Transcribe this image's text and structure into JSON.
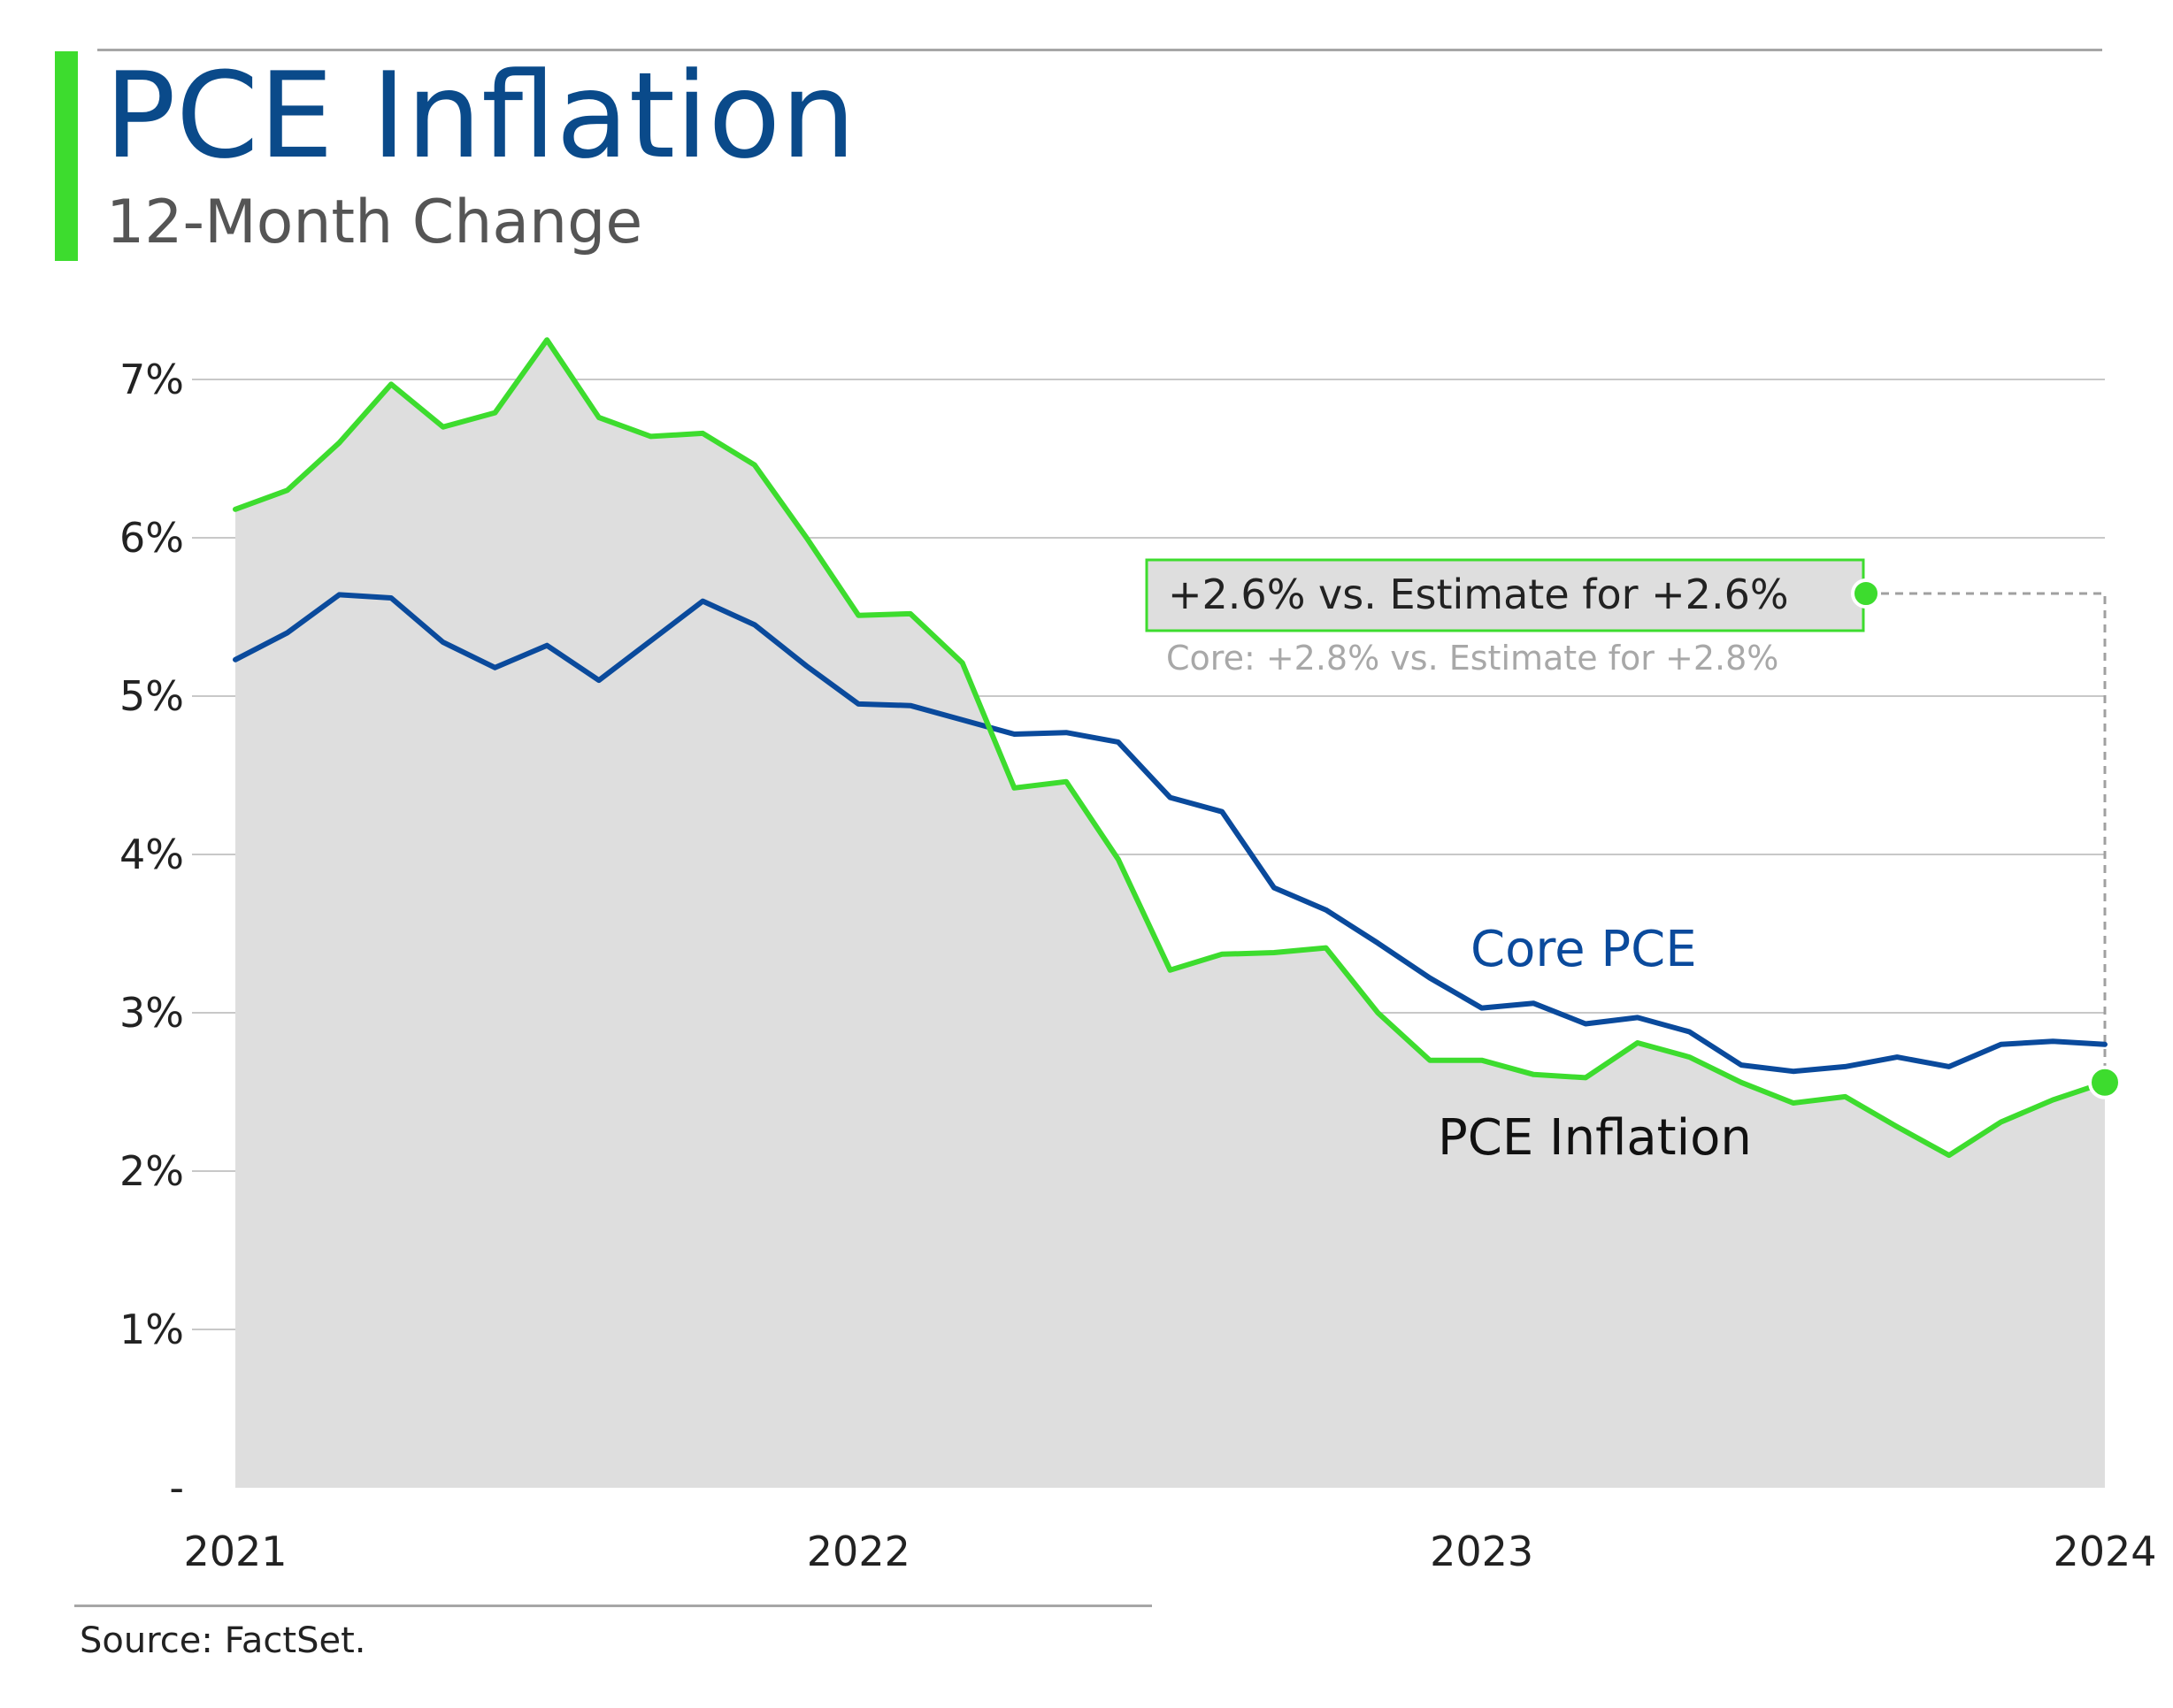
{
  "header": {
    "title": "PCE Inflation",
    "subtitle": "12-Month Change"
  },
  "footer": {
    "source": "Source: FactSet."
  },
  "annotation": {
    "headline": "+2.6% vs. Estimate for +2.6%",
    "core_line": "Core: +2.8% vs. Estimate for +2.8%"
  },
  "colors": {
    "pce": "#3ddc2e",
    "core": "#0a4a9c",
    "area_fill": "#dedede",
    "title": "#0a4a8a",
    "accent": "#3ddc2e",
    "grid": "#c8c8c8"
  },
  "chart_data": {
    "type": "line",
    "title": "PCE Inflation",
    "subtitle": "12-Month Change",
    "x_tick_labels": [
      "2021",
      "2022",
      "2023",
      "2024"
    ],
    "y_tick_labels": [
      "-",
      "1%",
      "2%",
      "3%",
      "4%",
      "5%",
      "6%",
      "7%"
    ],
    "ylim": [
      0,
      7
    ],
    "x_start": "2021-01",
    "x_end": "2024-01",
    "grid": true,
    "fill_under": "PCE Inflation",
    "x": [
      "2021-01",
      "2021-02",
      "2021-03",
      "2021-04",
      "2021-05",
      "2021-06",
      "2021-07",
      "2021-08",
      "2021-09",
      "2021-10",
      "2021-11",
      "2021-12",
      "2022-01",
      "2022-02",
      "2022-03",
      "2022-04",
      "2022-05",
      "2022-06",
      "2022-07",
      "2022-08",
      "2022-09",
      "2022-10",
      "2022-11",
      "2022-12",
      "2023-01",
      "2023-02",
      "2023-03",
      "2023-04",
      "2023-05",
      "2023-06",
      "2023-07",
      "2023-08",
      "2023-09",
      "2023-10",
      "2023-11",
      "2023-12",
      "2024-01"
    ],
    "series": [
      {
        "name": "PCE Inflation",
        "values": [
          6.18,
          6.3,
          6.6,
          6.97,
          6.7,
          6.79,
          7.25,
          6.76,
          6.64,
          6.66,
          6.46,
          6.0,
          5.51,
          5.52,
          5.21,
          4.42,
          4.46,
          3.97,
          3.27,
          3.37,
          3.38,
          3.41,
          3.0,
          2.7,
          2.7,
          2.61,
          2.59,
          2.81,
          2.72,
          2.56,
          2.43,
          2.47,
          2.28,
          2.1,
          2.31,
          2.45,
          2.56
        ]
      },
      {
        "name": "Core PCE",
        "values": [
          5.23,
          5.4,
          5.64,
          5.62,
          5.34,
          5.18,
          5.32,
          5.1,
          5.35,
          5.6,
          5.45,
          5.19,
          4.95,
          4.94,
          4.85,
          4.76,
          4.77,
          4.71,
          4.36,
          4.27,
          3.79,
          3.65,
          3.44,
          3.22,
          3.03,
          3.06,
          2.93,
          2.97,
          2.88,
          2.67,
          2.63,
          2.66,
          2.72,
          2.66,
          2.8,
          2.82,
          2.8
        ]
      }
    ]
  }
}
